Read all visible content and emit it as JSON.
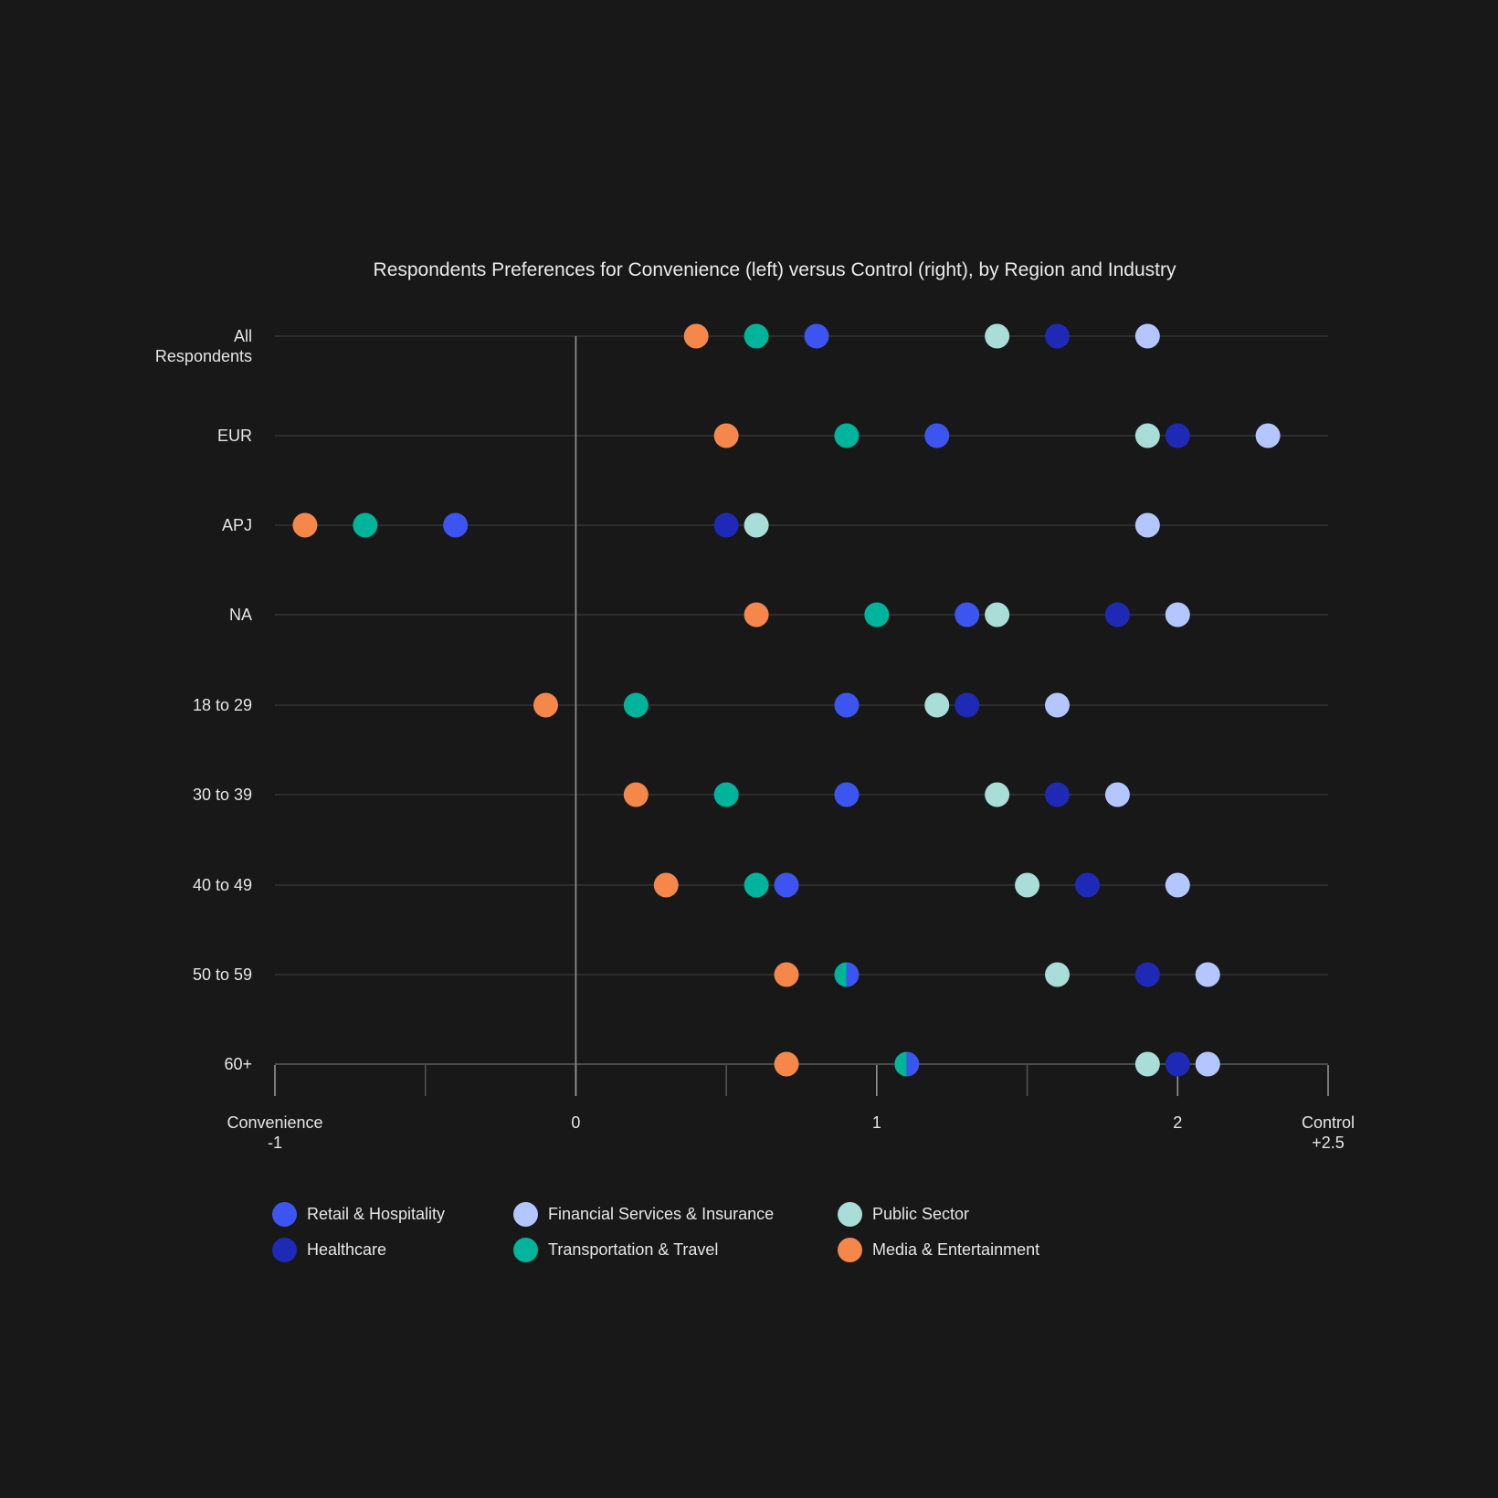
{
  "chart_data": {
    "type": "scatter",
    "title": "Respondents Preferences for Convenience (left) versus Control (right), by Region and Industry",
    "categories": [
      "All Respondents",
      "EUR",
      "APJ",
      "NA",
      "18 to 29",
      "30 to 39",
      "40 to 49",
      "50 to 59",
      "60+"
    ],
    "category_labels": [
      [
        "All",
        "Respondents"
      ],
      [
        "EUR"
      ],
      [
        "APJ"
      ],
      [
        "NA"
      ],
      [
        "18 to 29"
      ],
      [
        "30 to 39"
      ],
      [
        "40 to 49"
      ],
      [
        "50 to 59"
      ],
      [
        "60+"
      ]
    ],
    "xlim": [
      -1,
      2.5
    ],
    "x_ticks": [
      -1,
      -0.5,
      0,
      0.5,
      1,
      1.5,
      2,
      2.5
    ],
    "x_tick_labels": [
      {
        "value": -1,
        "lines": [
          "Convenience",
          "-1"
        ]
      },
      {
        "value": 0,
        "lines": [
          "0"
        ]
      },
      {
        "value": 1,
        "lines": [
          "1"
        ]
      },
      {
        "value": 2,
        "lines": [
          "2"
        ]
      },
      {
        "value": 2.5,
        "lines": [
          "Control",
          "+2.5"
        ]
      }
    ],
    "grid": "horizontal",
    "legend_placement": "bottom",
    "series": [
      {
        "name": "Media & Entertainment",
        "color": "#f5874a",
        "values": [
          0.4,
          0.5,
          -0.9,
          0.6,
          -0.1,
          0.2,
          0.3,
          0.7,
          0.7
        ]
      },
      {
        "name": "Transportation & Travel",
        "color": "#00b39b",
        "values": [
          0.6,
          0.9,
          -0.7,
          1.0,
          0.2,
          0.5,
          0.6,
          0.9,
          1.1
        ]
      },
      {
        "name": "Retail & Hospitality",
        "color": "#3d55f0",
        "values": [
          0.8,
          1.2,
          -0.4,
          1.3,
          0.9,
          0.9,
          0.7,
          0.9,
          1.1
        ]
      },
      {
        "name": "Public Sector",
        "color": "#a8ddd8",
        "values": [
          1.4,
          1.9,
          0.6,
          1.4,
          1.2,
          1.4,
          1.5,
          1.6,
          1.9
        ]
      },
      {
        "name": "Healthcare",
        "color": "#1e2ab5",
        "values": [
          1.6,
          2.0,
          0.5,
          1.8,
          1.3,
          1.6,
          1.7,
          1.9,
          2.0
        ]
      },
      {
        "name": "Financial Services & Insurance",
        "color": "#b3c6ff",
        "values": [
          1.9,
          2.3,
          1.9,
          2.0,
          1.6,
          1.8,
          2.0,
          2.1,
          2.1
        ]
      }
    ],
    "legend_order": [
      "Retail & Hospitality",
      "Financial Services & Insurance",
      "Public Sector",
      "Healthcare",
      "Transportation & Travel",
      "Media & Entertainment"
    ]
  }
}
